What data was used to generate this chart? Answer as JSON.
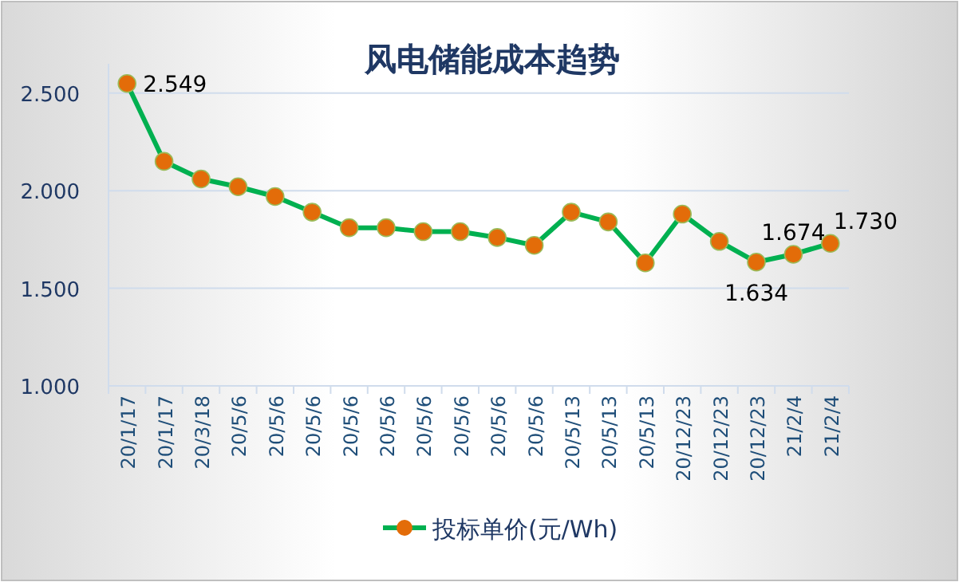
{
  "chart_data": {
    "type": "line",
    "title": "风电储能成本趋势",
    "categories": [
      "20/1/17",
      "20/1/17",
      "20/3/18",
      "20/5/6",
      "20/5/6",
      "20/5/6",
      "20/5/6",
      "20/5/6",
      "20/5/6",
      "20/5/6",
      "20/5/6",
      "20/5/6",
      "20/5/13",
      "20/5/13",
      "20/5/13",
      "20/12/23",
      "20/12/23",
      "20/12/23",
      "21/2/4",
      "21/2/4"
    ],
    "series": [
      {
        "name": "投标单价(元/Wh)",
        "color": "#00b050",
        "colors": [
          "#e36c09",
          "#e36c09",
          "#e36c09",
          "#e36c09",
          "#e36c09",
          "#e36c09",
          "#e36c09",
          "#e36c09",
          "#e36c09",
          "#e36c09",
          "#e36c09",
          "#e36c09",
          "#e36c09",
          "#e36c09",
          "#e36c09",
          "#e36c09",
          "#e36c09",
          "#e36c09",
          "#e36c09",
          "#e36c09"
        ],
        "values": [
          2.549,
          2.15,
          2.06,
          2.02,
          1.97,
          1.89,
          1.81,
          1.81,
          1.79,
          1.79,
          1.76,
          1.72,
          1.89,
          1.84,
          1.63,
          1.88,
          1.74,
          1.634,
          1.674,
          1.73
        ],
        "value_labels": [
          "2.549",
          null,
          null,
          null,
          null,
          null,
          null,
          null,
          null,
          null,
          null,
          null,
          null,
          null,
          null,
          null,
          null,
          "1.634",
          "1.674",
          "1.730"
        ]
      }
    ],
    "ylim": [
      1.0,
      2.65
    ],
    "yticks": [
      {
        "value": 1.0,
        "label": "1.000"
      },
      {
        "value": 1.5,
        "label": "1.500"
      },
      {
        "value": 2.0,
        "label": "2.000"
      },
      {
        "value": 2.5,
        "label": "2.500"
      }
    ],
    "grid": "y",
    "legend": "bottom",
    "marker": "circle",
    "line_style": "solid"
  }
}
